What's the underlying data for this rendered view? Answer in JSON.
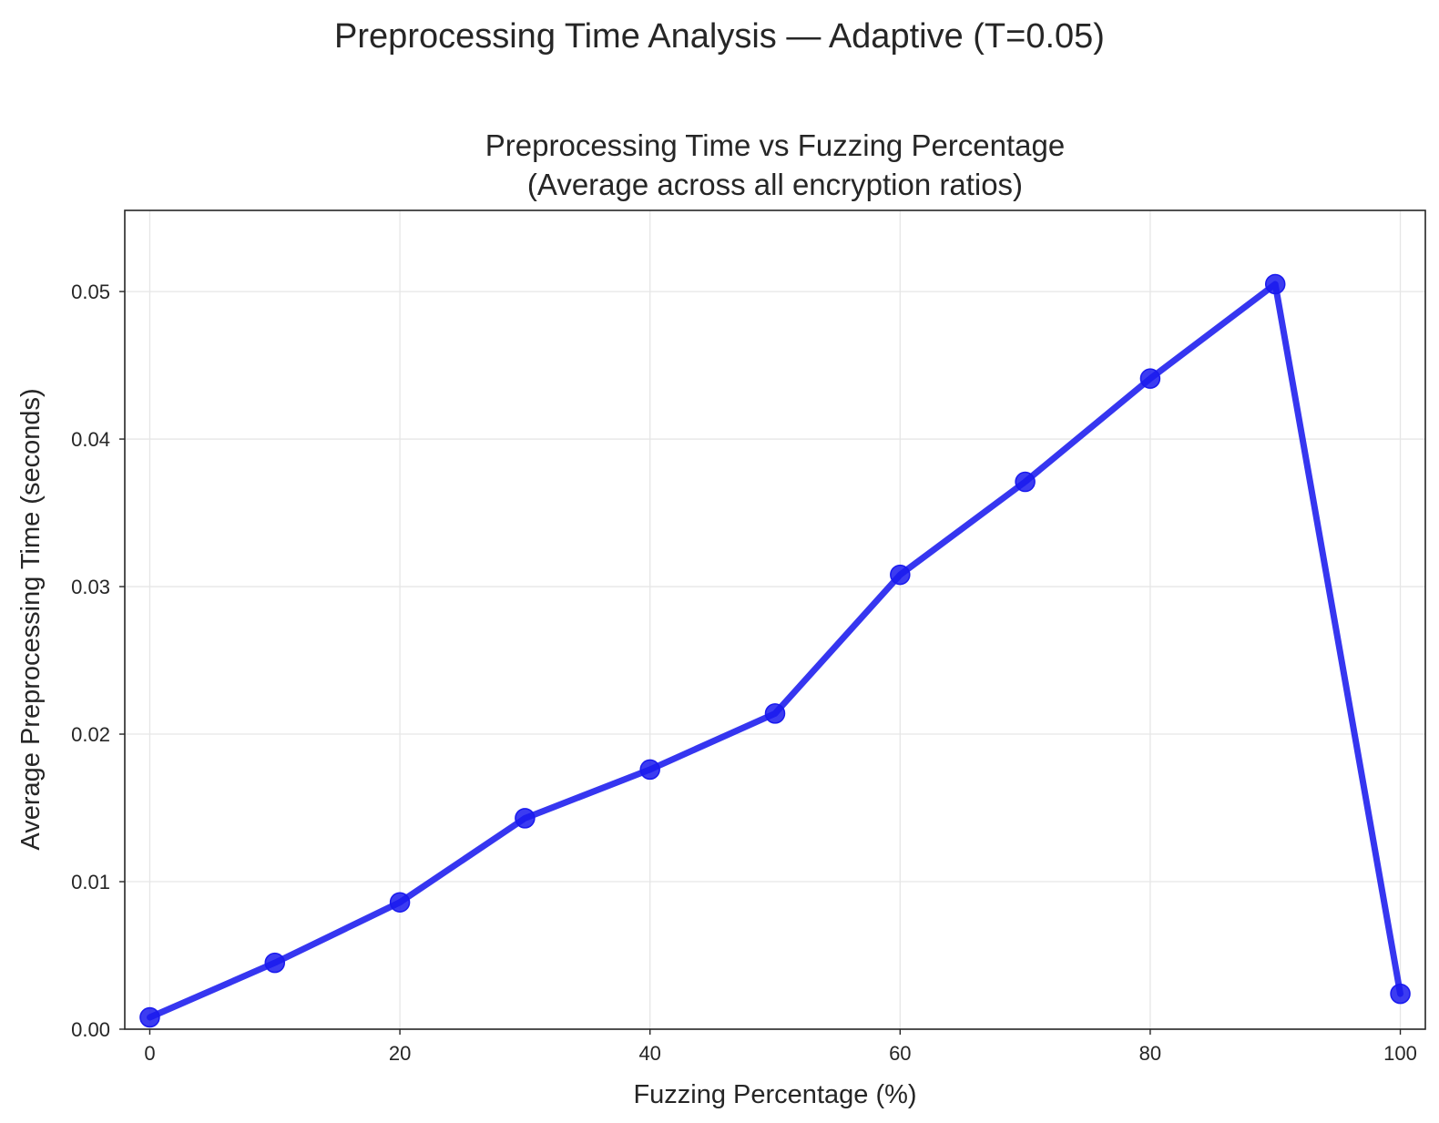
{
  "figure": {
    "suptitle": "Preprocessing Time Analysis — Adaptive (T=0.05)"
  },
  "chart_data": {
    "type": "line",
    "title_line1": "Preprocessing Time vs Fuzzing Percentage",
    "title_line2": "(Average across all encryption ratios)",
    "xlabel": "Fuzzing Percentage (%)",
    "ylabel": "Average Preprocessing Time (seconds)",
    "xlim": [
      -2,
      102
    ],
    "ylim": [
      0,
      0.0555
    ],
    "xticks": [
      0,
      20,
      40,
      60,
      80,
      100
    ],
    "xtick_labels": [
      "0",
      "20",
      "40",
      "60",
      "80",
      "100"
    ],
    "yticks": [
      0,
      0.01,
      0.02,
      0.03,
      0.04,
      0.05
    ],
    "ytick_labels": [
      "0.00",
      "0.01",
      "0.02",
      "0.03",
      "0.04",
      "0.05"
    ],
    "grid": true,
    "series": [
      {
        "color": "#1a1aee",
        "marker": "circle",
        "x": [
          0,
          10,
          20,
          30,
          40,
          50,
          60,
          70,
          80,
          90,
          100
        ],
        "y": [
          0.0008,
          0.0045,
          0.0086,
          0.0143,
          0.0176,
          0.0214,
          0.0308,
          0.0371,
          0.0441,
          0.0505,
          0.0024
        ]
      }
    ]
  }
}
